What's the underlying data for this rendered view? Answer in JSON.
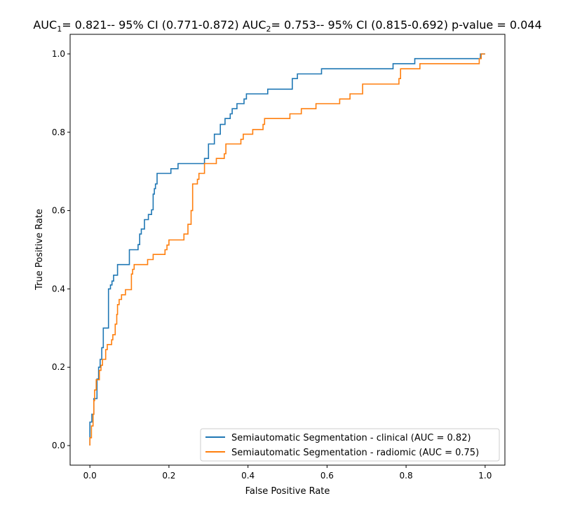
{
  "chart_data": {
    "type": "line",
    "title": {
      "auc1_prefix": "AUC",
      "auc1_sub": "1",
      "auc1_text": "= 0.821-- 95% CI (0.771-0.872) AUC",
      "auc2_sub": "2",
      "auc2_text": "= 0.753-- 95% CI (0.815-0.692) p-value = 0.044"
    },
    "xlabel": "False Positive Rate",
    "ylabel": "True Positive Rate",
    "xlim": [
      -0.05,
      1.05
    ],
    "ylim": [
      -0.05,
      1.05
    ],
    "xticks": [
      0.0,
      0.2,
      0.4,
      0.6,
      0.8,
      1.0
    ],
    "yticks": [
      0.0,
      0.2,
      0.4,
      0.6,
      0.8,
      1.0
    ],
    "xtick_labels": [
      "0.0",
      "0.2",
      "0.4",
      "0.6",
      "0.8",
      "1.0"
    ],
    "ytick_labels": [
      "0.0",
      "0.2",
      "0.4",
      "0.6",
      "0.8",
      "1.0"
    ],
    "grid": false,
    "legend_position": "lower-right",
    "series": [
      {
        "name": "Semiautomatic Segmentation - clinical (AUC = 0.82)",
        "color": "#1f77b4",
        "points": [
          [
            0.0,
            0.0
          ],
          [
            0.0,
            0.06
          ],
          [
            0.005,
            0.06
          ],
          [
            0.005,
            0.08
          ],
          [
            0.01,
            0.08
          ],
          [
            0.01,
            0.12
          ],
          [
            0.018,
            0.12
          ],
          [
            0.018,
            0.17
          ],
          [
            0.022,
            0.17
          ],
          [
            0.022,
            0.2
          ],
          [
            0.026,
            0.2
          ],
          [
            0.026,
            0.22
          ],
          [
            0.03,
            0.22
          ],
          [
            0.03,
            0.25
          ],
          [
            0.034,
            0.25
          ],
          [
            0.034,
            0.3
          ],
          [
            0.047,
            0.3
          ],
          [
            0.047,
            0.4
          ],
          [
            0.052,
            0.4
          ],
          [
            0.052,
            0.41
          ],
          [
            0.056,
            0.41
          ],
          [
            0.056,
            0.42
          ],
          [
            0.06,
            0.42
          ],
          [
            0.06,
            0.435
          ],
          [
            0.07,
            0.435
          ],
          [
            0.07,
            0.462
          ],
          [
            0.1,
            0.462
          ],
          [
            0.1,
            0.5
          ],
          [
            0.122,
            0.5
          ],
          [
            0.122,
            0.513
          ],
          [
            0.126,
            0.513
          ],
          [
            0.126,
            0.54
          ],
          [
            0.13,
            0.54
          ],
          [
            0.13,
            0.553
          ],
          [
            0.138,
            0.553
          ],
          [
            0.138,
            0.577
          ],
          [
            0.148,
            0.577
          ],
          [
            0.148,
            0.59
          ],
          [
            0.156,
            0.59
          ],
          [
            0.156,
            0.602
          ],
          [
            0.16,
            0.602
          ],
          [
            0.16,
            0.642
          ],
          [
            0.163,
            0.642
          ],
          [
            0.163,
            0.656
          ],
          [
            0.166,
            0.656
          ],
          [
            0.166,
            0.668
          ],
          [
            0.17,
            0.668
          ],
          [
            0.17,
            0.695
          ],
          [
            0.205,
            0.695
          ],
          [
            0.205,
            0.707
          ],
          [
            0.223,
            0.707
          ],
          [
            0.223,
            0.72
          ],
          [
            0.29,
            0.72
          ],
          [
            0.29,
            0.733
          ],
          [
            0.3,
            0.733
          ],
          [
            0.3,
            0.77
          ],
          [
            0.315,
            0.77
          ],
          [
            0.315,
            0.795
          ],
          [
            0.33,
            0.795
          ],
          [
            0.33,
            0.82
          ],
          [
            0.342,
            0.82
          ],
          [
            0.342,
            0.835
          ],
          [
            0.355,
            0.835
          ],
          [
            0.355,
            0.847
          ],
          [
            0.36,
            0.847
          ],
          [
            0.36,
            0.86
          ],
          [
            0.372,
            0.86
          ],
          [
            0.372,
            0.873
          ],
          [
            0.39,
            0.873
          ],
          [
            0.39,
            0.885
          ],
          [
            0.396,
            0.885
          ],
          [
            0.396,
            0.898
          ],
          [
            0.45,
            0.898
          ],
          [
            0.45,
            0.91
          ],
          [
            0.512,
            0.91
          ],
          [
            0.512,
            0.937
          ],
          [
            0.525,
            0.937
          ],
          [
            0.525,
            0.949
          ],
          [
            0.586,
            0.949
          ],
          [
            0.586,
            0.962
          ],
          [
            0.767,
            0.962
          ],
          [
            0.767,
            0.975
          ],
          [
            0.822,
            0.975
          ],
          [
            0.822,
            0.988
          ],
          [
            0.988,
            0.988
          ],
          [
            0.988,
            1.0
          ],
          [
            1.0,
            1.0
          ]
        ]
      },
      {
        "name": "Semiautomatic Segmentation - radiomic (AUC = 0.75)",
        "color": "#ff7f0e",
        "points": [
          [
            0.0,
            0.0
          ],
          [
            0.0,
            0.02
          ],
          [
            0.004,
            0.02
          ],
          [
            0.004,
            0.05
          ],
          [
            0.008,
            0.05
          ],
          [
            0.008,
            0.08
          ],
          [
            0.01,
            0.08
          ],
          [
            0.01,
            0.115
          ],
          [
            0.012,
            0.115
          ],
          [
            0.012,
            0.142
          ],
          [
            0.016,
            0.142
          ],
          [
            0.016,
            0.168
          ],
          [
            0.024,
            0.168
          ],
          [
            0.024,
            0.192
          ],
          [
            0.028,
            0.192
          ],
          [
            0.028,
            0.205
          ],
          [
            0.032,
            0.205
          ],
          [
            0.032,
            0.22
          ],
          [
            0.04,
            0.22
          ],
          [
            0.04,
            0.245
          ],
          [
            0.044,
            0.245
          ],
          [
            0.044,
            0.258
          ],
          [
            0.055,
            0.258
          ],
          [
            0.055,
            0.27
          ],
          [
            0.058,
            0.27
          ],
          [
            0.058,
            0.283
          ],
          [
            0.064,
            0.283
          ],
          [
            0.064,
            0.31
          ],
          [
            0.068,
            0.31
          ],
          [
            0.068,
            0.335
          ],
          [
            0.07,
            0.335
          ],
          [
            0.07,
            0.36
          ],
          [
            0.074,
            0.36
          ],
          [
            0.074,
            0.373
          ],
          [
            0.08,
            0.373
          ],
          [
            0.08,
            0.385
          ],
          [
            0.09,
            0.385
          ],
          [
            0.09,
            0.398
          ],
          [
            0.105,
            0.398
          ],
          [
            0.105,
            0.438
          ],
          [
            0.108,
            0.438
          ],
          [
            0.108,
            0.45
          ],
          [
            0.112,
            0.45
          ],
          [
            0.112,
            0.462
          ],
          [
            0.146,
            0.462
          ],
          [
            0.146,
            0.475
          ],
          [
            0.16,
            0.475
          ],
          [
            0.16,
            0.488
          ],
          [
            0.19,
            0.488
          ],
          [
            0.19,
            0.5
          ],
          [
            0.195,
            0.5
          ],
          [
            0.195,
            0.512
          ],
          [
            0.2,
            0.512
          ],
          [
            0.2,
            0.525
          ],
          [
            0.238,
            0.525
          ],
          [
            0.238,
            0.54
          ],
          [
            0.248,
            0.54
          ],
          [
            0.248,
            0.565
          ],
          [
            0.256,
            0.565
          ],
          [
            0.256,
            0.6
          ],
          [
            0.26,
            0.6
          ],
          [
            0.26,
            0.668
          ],
          [
            0.272,
            0.668
          ],
          [
            0.272,
            0.68
          ],
          [
            0.276,
            0.68
          ],
          [
            0.276,
            0.695
          ],
          [
            0.29,
            0.695
          ],
          [
            0.29,
            0.72
          ],
          [
            0.32,
            0.72
          ],
          [
            0.32,
            0.733
          ],
          [
            0.34,
            0.733
          ],
          [
            0.34,
            0.745
          ],
          [
            0.344,
            0.745
          ],
          [
            0.344,
            0.77
          ],
          [
            0.382,
            0.77
          ],
          [
            0.382,
            0.782
          ],
          [
            0.388,
            0.782
          ],
          [
            0.388,
            0.795
          ],
          [
            0.412,
            0.795
          ],
          [
            0.412,
            0.807
          ],
          [
            0.438,
            0.807
          ],
          [
            0.438,
            0.82
          ],
          [
            0.442,
            0.82
          ],
          [
            0.442,
            0.835
          ],
          [
            0.506,
            0.835
          ],
          [
            0.506,
            0.847
          ],
          [
            0.535,
            0.847
          ],
          [
            0.535,
            0.86
          ],
          [
            0.572,
            0.86
          ],
          [
            0.572,
            0.873
          ],
          [
            0.632,
            0.873
          ],
          [
            0.632,
            0.885
          ],
          [
            0.658,
            0.885
          ],
          [
            0.658,
            0.898
          ],
          [
            0.69,
            0.898
          ],
          [
            0.69,
            0.923
          ],
          [
            0.782,
            0.923
          ],
          [
            0.782,
            0.937
          ],
          [
            0.786,
            0.937
          ],
          [
            0.786,
            0.962
          ],
          [
            0.835,
            0.962
          ],
          [
            0.835,
            0.975
          ],
          [
            0.985,
            0.975
          ],
          [
            0.985,
            0.988
          ],
          [
            0.99,
            0.988
          ],
          [
            0.99,
            1.0
          ],
          [
            1.0,
            1.0
          ]
        ]
      }
    ]
  }
}
